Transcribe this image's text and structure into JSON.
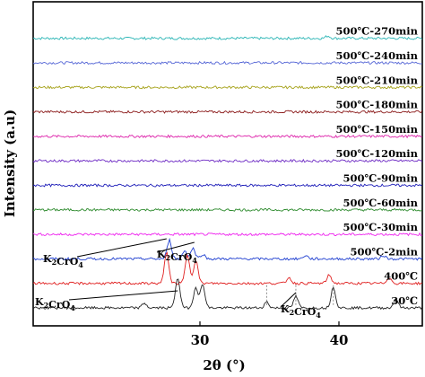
{
  "chart_data": {
    "type": "line",
    "xlabel": "2θ (°)",
    "ylabel": "Intensity (a.u)",
    "xlim": [
      18,
      46
    ],
    "x_ticks": [
      30,
      40
    ],
    "x_tick_labels": [
      "30",
      "40"
    ],
    "y_ticks_shown": false,
    "grid": false,
    "legend": "none",
    "series": [
      {
        "name": "500℃-270min",
        "color": "#2AB5B5",
        "offset_level": 12,
        "peaks": [
          {
            "x": 39.2,
            "h": 0.1
          }
        ]
      },
      {
        "name": "500℃-240min",
        "color": "#5566D6",
        "offset_level": 11,
        "peaks": []
      },
      {
        "name": "500℃-210min",
        "color": "#A6A21A",
        "offset_level": 10,
        "peaks": []
      },
      {
        "name": "500℃-180min",
        "color": "#8B1A1A",
        "offset_level": 9,
        "peaks": []
      },
      {
        "name": "500℃-150min",
        "color": "#DD22AA",
        "offset_level": 8,
        "peaks": []
      },
      {
        "name": "500℃-120min",
        "color": "#6E2BC4",
        "offset_level": 7,
        "peaks": []
      },
      {
        "name": "500℃-90min",
        "color": "#1C1CB8",
        "offset_level": 6,
        "peaks": []
      },
      {
        "name": "500℃-60min",
        "color": "#2E8B2E",
        "offset_level": 5,
        "peaks": []
      },
      {
        "name": "500℃-30min",
        "color": "#EE22EE",
        "offset_level": 4,
        "peaks": []
      },
      {
        "name": "500℃-2min",
        "color": "#1F3FD0",
        "offset_level": 3,
        "peaks": [
          {
            "x": 27.8,
            "h": 0.8
          },
          {
            "x": 28.9,
            "h": 0.35
          },
          {
            "x": 29.5,
            "h": 0.45
          },
          {
            "x": 30.2,
            "h": 0.2
          },
          {
            "x": 37.6,
            "h": 0.15
          },
          {
            "x": 43.2,
            "h": 0.15
          }
        ]
      },
      {
        "name": "400℃",
        "color": "#E02020",
        "offset_level": 2,
        "peaks": [
          {
            "x": 27.6,
            "h": 1.3
          },
          {
            "x": 29.1,
            "h": 1.2
          },
          {
            "x": 29.7,
            "h": 1.0
          },
          {
            "x": 36.4,
            "h": 0.25
          },
          {
            "x": 39.3,
            "h": 0.35
          },
          {
            "x": 43.6,
            "h": 0.25
          }
        ]
      },
      {
        "name": "30℃",
        "color": "#222222",
        "offset_level": 1,
        "peaks": [
          {
            "x": 26.0,
            "h": 0.2
          },
          {
            "x": 28.4,
            "h": 1.3
          },
          {
            "x": 29.7,
            "h": 0.9
          },
          {
            "x": 30.2,
            "h": 1.0
          },
          {
            "x": 34.8,
            "h": 0.25
          },
          {
            "x": 36.9,
            "h": 0.5
          },
          {
            "x": 39.6,
            "h": 0.9
          },
          {
            "x": 44.1,
            "h": 0.4
          }
        ]
      }
    ],
    "annotations": [
      {
        "text": "K2CrO4",
        "main": "K",
        "sub1": "2",
        "mid": "CrO",
        "sub2": "4",
        "near_series": "500℃-2min",
        "side": "left"
      },
      {
        "text": "K2CrO4",
        "main": "K",
        "sub1": "2",
        "mid": "CrO",
        "sub2": "4",
        "near_series": "500℃-2min",
        "side": "right"
      },
      {
        "text": "K2CrO4",
        "main": "K",
        "sub1": "2",
        "mid": "CrO",
        "sub2": "4",
        "near_series": "30℃",
        "side": "left"
      },
      {
        "text": "K2CrO4",
        "main": "K",
        "sub1": "2",
        "mid": "CrO",
        "sub2": "4",
        "near_series": "30℃",
        "side": "right"
      }
    ]
  }
}
